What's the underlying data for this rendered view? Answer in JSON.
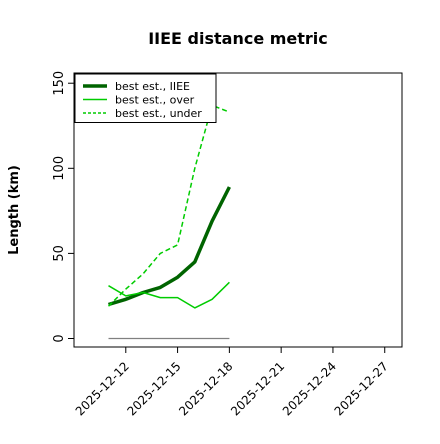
{
  "chart_data": {
    "type": "line",
    "title": "IIEE distance metric",
    "xlabel": "",
    "ylabel": "Length (km)",
    "x_range": [
      "2025-12-09",
      "2025-12-28"
    ],
    "ylim": [
      -5,
      156
    ],
    "y_ticks": [
      0,
      50,
      100,
      150
    ],
    "x_ticks": [
      "2025-12-12",
      "2025-12-15",
      "2025-12-18",
      "2025-12-21",
      "2025-12-24",
      "2025-12-27"
    ],
    "grid": false,
    "legend_position": "upper-left",
    "series": [
      {
        "name": "best est., IIEE",
        "style": "solid-thick",
        "color": "#006400",
        "x": [
          "2025-12-11",
          "2025-12-12",
          "2025-12-13",
          "2025-12-14",
          "2025-12-15",
          "2025-12-16",
          "2025-12-17",
          "2025-12-18"
        ],
        "values": [
          20,
          23,
          27,
          30,
          36,
          45,
          69,
          89
        ]
      },
      {
        "name": "best est., over",
        "style": "solid",
        "color": "#00cc00",
        "x": [
          "2025-12-11",
          "2025-12-12",
          "2025-12-13",
          "2025-12-14",
          "2025-12-15",
          "2025-12-16",
          "2025-12-17",
          "2025-12-18"
        ],
        "values": [
          31,
          25,
          27,
          24,
          24,
          18,
          23,
          33
        ]
      },
      {
        "name": "best est., under",
        "style": "dashed",
        "color": "#00cc00",
        "x": [
          "2025-12-11",
          "2025-12-12",
          "2025-12-13",
          "2025-12-14",
          "2025-12-15",
          "2025-12-16",
          "2025-12-17",
          "2025-12-18"
        ],
        "values": [
          19,
          29,
          38,
          50,
          55,
          100,
          137,
          133
        ]
      },
      {
        "name": "",
        "style": "solid-thin",
        "color": "#808080",
        "x": [
          "2025-12-11",
          "2025-12-18"
        ],
        "values": [
          0,
          0
        ]
      }
    ]
  }
}
